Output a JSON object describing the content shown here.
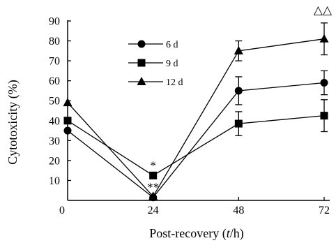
{
  "chart_data": {
    "type": "line",
    "xlabel_parts": [
      "Post-recovery (",
      "t",
      "/h)"
    ],
    "ylabel": "Cytotoxicity (%)",
    "x": [
      0,
      24,
      48,
      72
    ],
    "xticks": [
      "0",
      "24",
      "48",
      "72"
    ],
    "xlim": [
      0,
      72
    ],
    "ylim": [
      0,
      90
    ],
    "yticks": [
      "10",
      "20",
      "30",
      "40",
      "50",
      "60",
      "70",
      "80",
      "90"
    ],
    "grid": false,
    "legend_position": "top-left",
    "series": [
      {
        "name": "6 d",
        "marker": "circle",
        "values": [
          35,
          1.5,
          55,
          59
        ],
        "errors": [
          0,
          0,
          7,
          6
        ]
      },
      {
        "name": "9 d",
        "marker": "square",
        "values": [
          40,
          12.5,
          38.5,
          42.5
        ],
        "errors": [
          0,
          0,
          6,
          8
        ]
      },
      {
        "name": "12 d",
        "marker": "triangle",
        "values": [
          49,
          2,
          75,
          81
        ],
        "errors": [
          0,
          0,
          5,
          8
        ]
      }
    ],
    "annotations": [
      {
        "text": "*",
        "x": 24,
        "y": 12.5
      },
      {
        "text": "**",
        "x": 24,
        "y": 2
      },
      {
        "text": "△△",
        "x": 72,
        "y": 81
      }
    ]
  }
}
